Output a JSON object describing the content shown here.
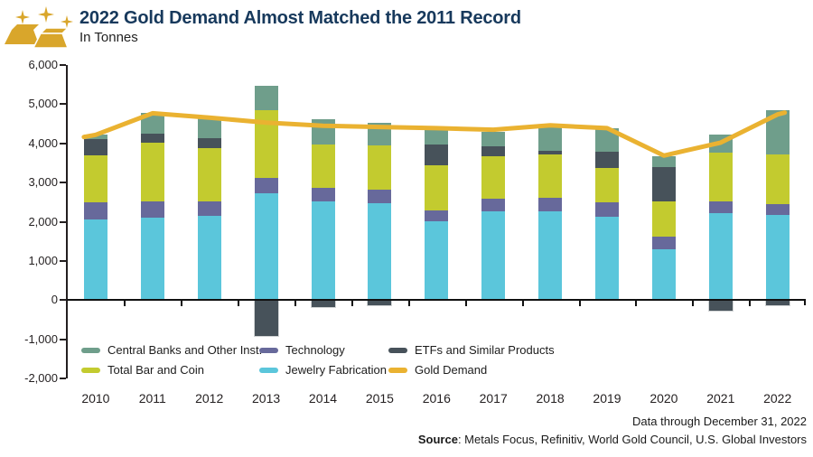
{
  "header": {
    "title": "2022 Gold Demand Almost Matched the 2011 Record",
    "subtitle": "In Tonnes"
  },
  "chart_data": {
    "type": "bar",
    "subtype": "stacked-bars-with-line-overlay",
    "title": "2022 Gold Demand Almost Matched the 2011 Record",
    "units": "Tonnes",
    "categories": [
      "2010",
      "2011",
      "2012",
      "2013",
      "2014",
      "2015",
      "2016",
      "2017",
      "2018",
      "2019",
      "2020",
      "2021",
      "2022"
    ],
    "series": [
      {
        "name": "Jewelry Fabrication",
        "slug": "jewelry-fabrication",
        "color": "#5BC6DB",
        "values": [
          2050,
          2100,
          2160,
          2720,
          2530,
          2480,
          2020,
          2270,
          2270,
          2120,
          1310,
          2230,
          2170
        ]
      },
      {
        "name": "Technology",
        "slug": "technology",
        "color": "#67699B",
        "values": [
          450,
          430,
          370,
          410,
          340,
          330,
          270,
          310,
          350,
          370,
          310,
          300,
          280
        ]
      },
      {
        "name": "Total Bar and Coin",
        "slug": "total-bar-and-coin",
        "color": "#C3CB2F",
        "values": [
          1200,
          1480,
          1340,
          1720,
          1100,
          1140,
          1150,
          1100,
          1110,
          880,
          900,
          1240,
          1280
        ]
      },
      {
        "name": "ETFs and Similar Products",
        "slug": "etfs-and-similar-products",
        "color": "#47525A",
        "values": [
          400,
          250,
          270,
          -920,
          -180,
          -130,
          540,
          250,
          90,
          420,
          880,
          -260,
          -140
        ]
      },
      {
        "name": "Central Banks and Other Inst.",
        "slug": "central-banks-and-other-inst",
        "color": "#6F9E8B",
        "values": [
          120,
          510,
          520,
          620,
          650,
          570,
          350,
          360,
          600,
          600,
          270,
          460,
          1120
        ]
      }
    ],
    "line_series": {
      "name": "Gold Demand",
      "slug": "gold-demand",
      "color": "#EAB231",
      "values": [
        4220,
        4770,
        4660,
        4530,
        4450,
        4420,
        4390,
        4350,
        4460,
        4390,
        3690,
        4020,
        4740
      ]
    },
    "ylim": [
      -2000,
      6000
    ],
    "ytick_step": 1000,
    "ytick_labels": [
      "6,000",
      "5,000",
      "4,000",
      "3,000",
      "2,000",
      "1,000",
      "0",
      "-1,000",
      "-2,000"
    ],
    "grid": false,
    "legend_position": "inside-bottom-left",
    "legend_rows": [
      [
        {
          "label": "Central Banks and Other Inst.",
          "slug": "central-banks-and-other-inst",
          "color": "#6F9E8B"
        },
        {
          "label": "Technology",
          "slug": "technology",
          "color": "#67699B"
        },
        {
          "label": "ETFs and Similar Products",
          "slug": "etfs-and-similar-products",
          "color": "#47525A"
        }
      ],
      [
        {
          "label": "Total Bar and Coin",
          "slug": "total-bar-and-coin",
          "color": "#C3CB2F"
        },
        {
          "label": "Jewelry Fabrication",
          "slug": "jewelry-fabrication",
          "color": "#5BC6DB"
        },
        {
          "label": "Gold Demand",
          "slug": "gold-demand",
          "color": "#EAB231"
        }
      ]
    ]
  },
  "footer": {
    "data_through": "Data through December 31, 2022",
    "source_label": "Source",
    "source_text": ": Metals Focus, Refinitiv, World Gold Council, U.S. Global Investors"
  },
  "colors": {
    "title_navy": "#17395C",
    "axis_black": "#231F20",
    "gold_icon": "#D9A62B",
    "gold_line": "#EAB231",
    "background": "#FFFFFF"
  }
}
